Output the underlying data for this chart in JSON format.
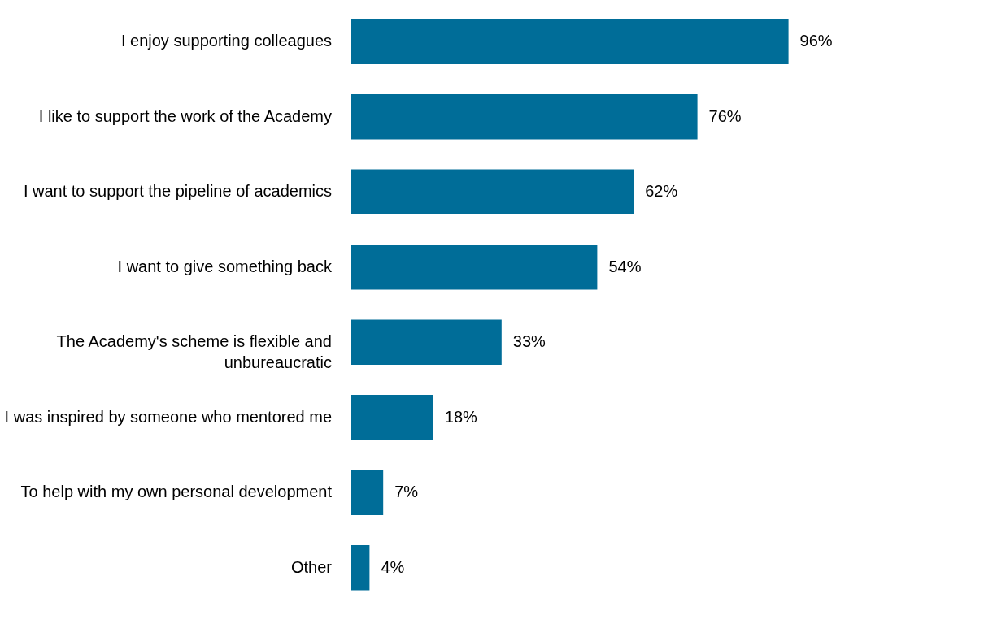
{
  "chart_data": {
    "type": "bar",
    "orientation": "horizontal",
    "categories": [
      "I enjoy supporting colleagues",
      "I like to support the work of the Academy",
      "I want to support the pipeline of academics",
      "I want to give something back",
      "The Academy's scheme is flexible and unbureaucratic",
      "I was inspired by someone who mentored me",
      "To help with my own personal development",
      "Other"
    ],
    "values": [
      96,
      76,
      62,
      54,
      33,
      18,
      7,
      4
    ],
    "value_labels": [
      "96%",
      "76%",
      "62%",
      "54%",
      "33%",
      "18%",
      "7%",
      "4%"
    ],
    "color": "#006d98"
  }
}
